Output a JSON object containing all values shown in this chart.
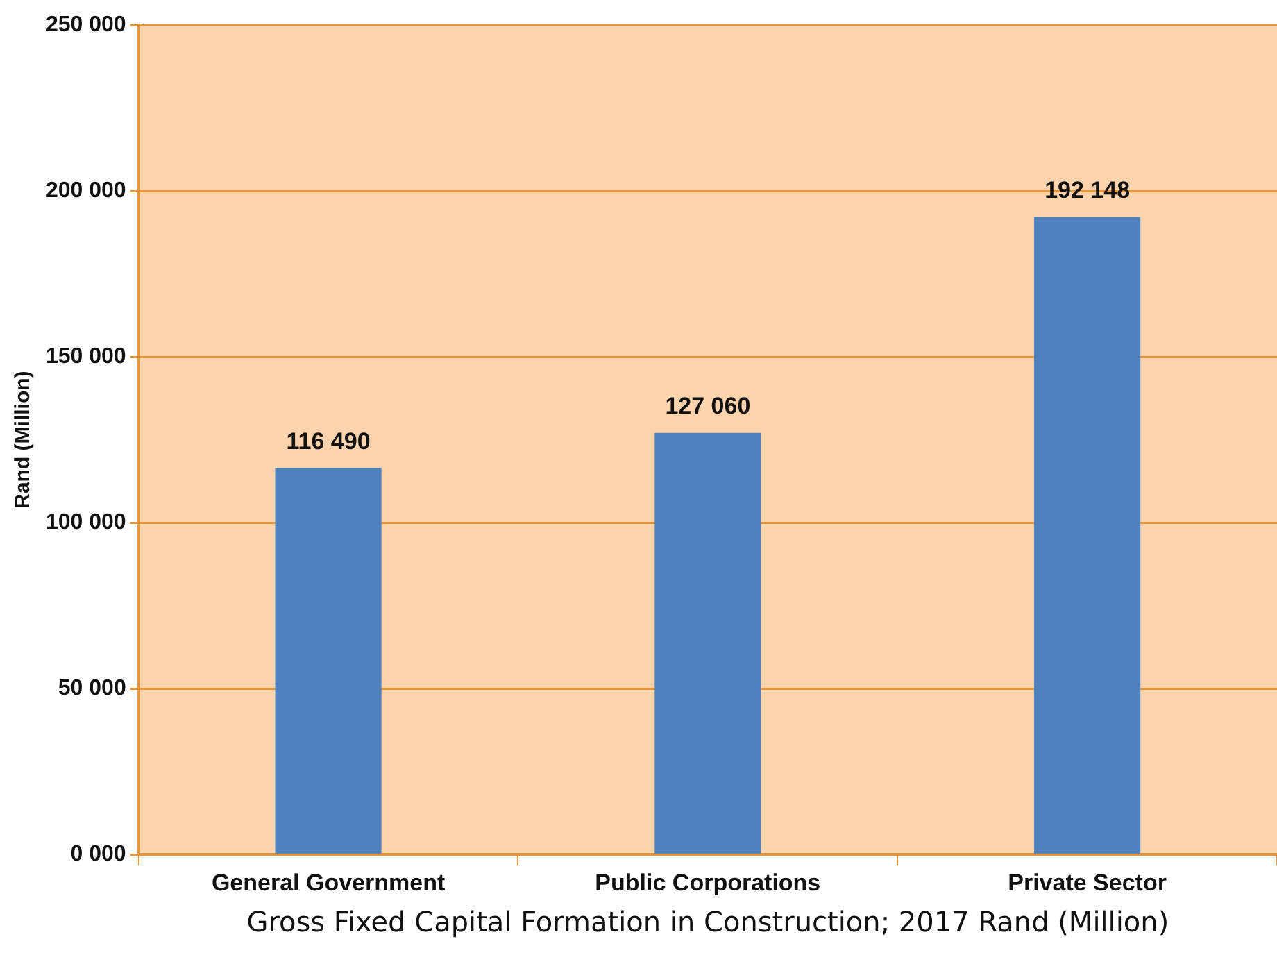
{
  "chart_data": {
    "type": "bar",
    "xlabel": "Gross Fixed Capital Formation in Construction; 2017 Rand (Million)",
    "ylabel": "Rand (Million)",
    "categories": [
      "General Government",
      "Public Corporations",
      "Private Sector"
    ],
    "values": [
      116490,
      127060,
      192148
    ],
    "color": "#4f81bd",
    "value_labels": [
      "116 490",
      "127 060",
      "192 148"
    ],
    "ylim": [
      0,
      250000
    ],
    "yticks": [
      {
        "value": 0,
        "label": "0 000"
      },
      {
        "value": 50000,
        "label": "50 000"
      },
      {
        "value": 100000,
        "label": "100 000"
      },
      {
        "value": 150000,
        "label": "150 000"
      },
      {
        "value": 200000,
        "label": "200 000"
      },
      {
        "value": 250000,
        "label": "250 000"
      }
    ],
    "grid": "y",
    "legend": false
  }
}
